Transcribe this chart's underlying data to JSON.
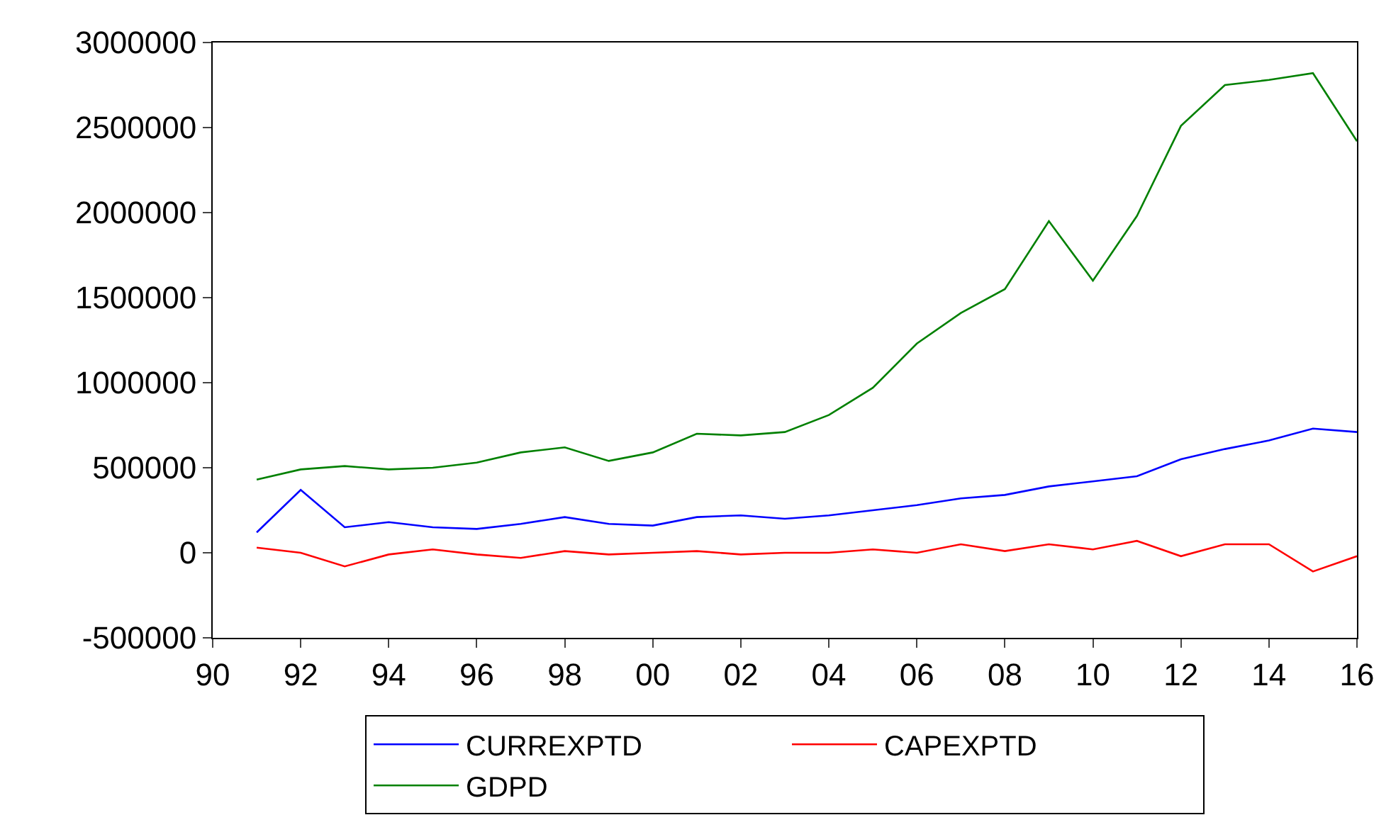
{
  "chart_data": {
    "type": "line",
    "x": [
      1991,
      1992,
      1993,
      1994,
      1995,
      1996,
      1997,
      1998,
      1999,
      2000,
      2001,
      2002,
      2003,
      2004,
      2005,
      2006,
      2007,
      2008,
      2009,
      2010,
      2011,
      2012,
      2013,
      2014,
      2015,
      2016
    ],
    "series": [
      {
        "name": "CURREXPTD",
        "color": "#0000ff",
        "values": [
          120000,
          370000,
          150000,
          180000,
          150000,
          140000,
          170000,
          210000,
          170000,
          160000,
          210000,
          220000,
          200000,
          220000,
          250000,
          280000,
          320000,
          340000,
          390000,
          420000,
          450000,
          550000,
          610000,
          660000,
          730000,
          710000
        ]
      },
      {
        "name": "CAPEXPTD",
        "color": "#ff0000",
        "values": [
          30000,
          0,
          -80000,
          -10000,
          20000,
          -10000,
          -30000,
          10000,
          -10000,
          0,
          10000,
          -10000,
          0,
          0,
          20000,
          0,
          50000,
          10000,
          50000,
          20000,
          70000,
          -20000,
          50000,
          50000,
          -110000,
          -20000
        ]
      },
      {
        "name": "GDPD",
        "color": "#008000",
        "values": [
          430000,
          490000,
          510000,
          490000,
          500000,
          530000,
          590000,
          620000,
          540000,
          590000,
          700000,
          690000,
          710000,
          810000,
          970000,
          1230000,
          1410000,
          1550000,
          1950000,
          1600000,
          1980000,
          2510000,
          2750000,
          2780000,
          2820000,
          2420000
        ]
      }
    ],
    "xlim": [
      1990,
      2016
    ],
    "xticks": [
      {
        "value": 1990,
        "label": "90"
      },
      {
        "value": 1992,
        "label": "92"
      },
      {
        "value": 1994,
        "label": "94"
      },
      {
        "value": 1996,
        "label": "96"
      },
      {
        "value": 1998,
        "label": "98"
      },
      {
        "value": 2000,
        "label": "00"
      },
      {
        "value": 2002,
        "label": "02"
      },
      {
        "value": 2004,
        "label": "04"
      },
      {
        "value": 2006,
        "label": "06"
      },
      {
        "value": 2008,
        "label": "08"
      },
      {
        "value": 2010,
        "label": "10"
      },
      {
        "value": 2012,
        "label": "12"
      },
      {
        "value": 2014,
        "label": "14"
      },
      {
        "value": 2016,
        "label": "16"
      }
    ],
    "ylim": [
      -500000,
      3000000
    ],
    "yticks": [
      -500000,
      0,
      500000,
      1000000,
      1500000,
      2000000,
      2500000,
      3000000
    ],
    "legend": "bottom",
    "marker": "none",
    "line_style": "solid"
  }
}
